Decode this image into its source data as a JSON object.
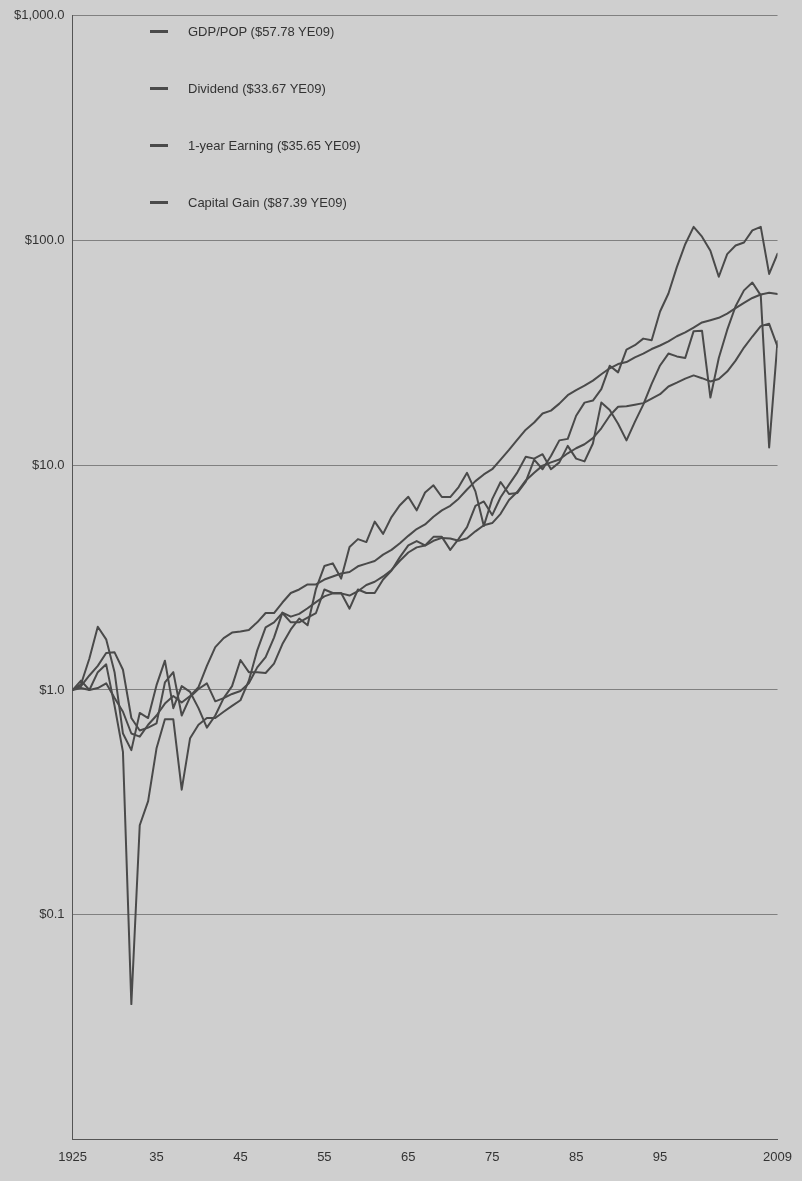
{
  "chart_data": {
    "type": "line",
    "log": "y",
    "grid": "y",
    "legend": "top left",
    "marker": "none",
    "line_style": "solid",
    "x": [
      1925,
      1926,
      1927,
      1928,
      1929,
      1930,
      1931,
      1932,
      1933,
      1934,
      1935,
      1936,
      1937,
      1938,
      1939,
      1940,
      1941,
      1942,
      1943,
      1944,
      1945,
      1946,
      1947,
      1948,
      1949,
      1950,
      1951,
      1952,
      1953,
      1954,
      1955,
      1956,
      1957,
      1958,
      1959,
      1960,
      1961,
      1962,
      1963,
      1964,
      1965,
      1966,
      1967,
      1968,
      1969,
      1970,
      1971,
      1972,
      1973,
      1974,
      1975,
      1976,
      1977,
      1978,
      1979,
      1980,
      1981,
      1982,
      1983,
      1984,
      1985,
      1986,
      1987,
      1988,
      1989,
      1990,
      1991,
      1992,
      1993,
      1994,
      1995,
      1996,
      1997,
      1998,
      1999,
      2000,
      2001,
      2002,
      2003,
      2004,
      2005,
      2006,
      2007,
      2008,
      2009
    ],
    "xlim": [
      1925,
      2009
    ],
    "xticks": [
      {
        "value": 1925,
        "label": "1925"
      },
      {
        "value": 1935,
        "label": "35"
      },
      {
        "value": 1945,
        "label": "45"
      },
      {
        "value": 1955,
        "label": "55"
      },
      {
        "value": 1965,
        "label": "65"
      },
      {
        "value": 1975,
        "label": "75"
      },
      {
        "value": 1985,
        "label": "85"
      },
      {
        "value": 1995,
        "label": "95"
      },
      {
        "value": 2009,
        "label": "2009"
      }
    ],
    "ylim": [
      0.01,
      1000
    ],
    "yticks": [
      {
        "value": 0.1,
        "label": "$0.1"
      },
      {
        "value": 1,
        "label": "$1.0"
      },
      {
        "value": 10,
        "label": "$10.0"
      },
      {
        "value": 100,
        "label": "$100.0"
      },
      {
        "value": 1000,
        "label": "$1,000.0"
      }
    ],
    "series": [
      {
        "name": "GDP/POP ($57.78 YE09)",
        "color": "#4a4a4a",
        "values": [
          1.0,
          1.02,
          1.0,
          1.02,
          1.07,
          0.92,
          0.8,
          0.64,
          0.62,
          0.7,
          0.77,
          0.87,
          0.94,
          0.88,
          0.94,
          1.03,
          1.28,
          1.55,
          1.7,
          1.8,
          1.82,
          1.85,
          2.0,
          2.2,
          2.2,
          2.45,
          2.7,
          2.8,
          2.95,
          2.95,
          3.1,
          3.2,
          3.3,
          3.35,
          3.55,
          3.65,
          3.75,
          4.0,
          4.2,
          4.5,
          4.85,
          5.2,
          5.45,
          5.9,
          6.3,
          6.6,
          7.1,
          7.8,
          8.5,
          9.1,
          9.6,
          10.6,
          11.7,
          13.0,
          14.4,
          15.5,
          17.0,
          17.5,
          18.8,
          20.5,
          21.6,
          22.6,
          23.8,
          25.4,
          27.0,
          28.2,
          28.8,
          30.2,
          31.4,
          32.9,
          34.1,
          35.6,
          37.5,
          39.0,
          41.0,
          43.2,
          44.2,
          45.3,
          47.3,
          50.0,
          52.8,
          55.5,
          57.5,
          58.5,
          57.78
        ]
      },
      {
        "name": "Dividend ($33.67 YE09)",
        "color": "#4a4a4a",
        "values": [
          1.0,
          1.04,
          1.16,
          1.28,
          1.46,
          1.47,
          1.23,
          0.75,
          0.66,
          0.68,
          0.71,
          1.08,
          1.2,
          0.77,
          0.93,
          1.01,
          1.07,
          0.89,
          0.92,
          0.96,
          0.99,
          1.07,
          1.26,
          1.4,
          1.71,
          2.21,
          2.12,
          2.18,
          2.31,
          2.46,
          2.61,
          2.69,
          2.69,
          2.63,
          2.75,
          2.93,
          3.03,
          3.2,
          3.42,
          3.76,
          4.09,
          4.31,
          4.39,
          4.61,
          4.75,
          4.72,
          4.61,
          4.73,
          5.08,
          5.41,
          5.53,
          6.08,
          7.01,
          7.62,
          8.56,
          9.25,
          9.96,
          10.3,
          10.6,
          11.3,
          11.9,
          12.4,
          13.2,
          14.6,
          16.6,
          18.2,
          18.3,
          18.6,
          18.9,
          19.8,
          20.7,
          22.4,
          23.3,
          24.3,
          25.1,
          24.4,
          23.6,
          24.2,
          26.1,
          29.2,
          33.4,
          37.4,
          41.6,
          42.6,
          33.67
        ]
      },
      {
        "name": "1-year Earning ($35.65 YE09)",
        "color": "#4a4a4a",
        "values": [
          1.0,
          1.1,
          1.0,
          1.2,
          1.3,
          0.85,
          0.53,
          0.04,
          0.25,
          0.32,
          0.55,
          0.74,
          0.74,
          0.36,
          0.61,
          0.7,
          0.75,
          0.75,
          0.8,
          0.85,
          0.9,
          1.1,
          1.5,
          1.9,
          2.0,
          2.2,
          2.0,
          2.0,
          2.1,
          2.2,
          2.8,
          2.7,
          2.7,
          2.3,
          2.8,
          2.7,
          2.7,
          3.1,
          3.4,
          3.9,
          4.4,
          4.6,
          4.4,
          4.8,
          4.8,
          4.2,
          4.7,
          5.3,
          6.6,
          6.9,
          6.0,
          7.2,
          8.2,
          9.3,
          10.9,
          10.7,
          11.2,
          9.6,
          10.3,
          12.2,
          10.7,
          10.4,
          12.5,
          19,
          17.6,
          15.3,
          12.9,
          15.6,
          18.6,
          23,
          27.8,
          31.4,
          30.5,
          30,
          39.5,
          39.7,
          20,
          30,
          40,
          51,
          60,
          65,
          57,
          12,
          35.65
        ]
      },
      {
        "name": "Capital Gain ($87.39 YE09)",
        "color": "#4a4a4a",
        "values": [
          1.0,
          1.06,
          1.38,
          1.91,
          1.68,
          1.2,
          0.64,
          0.54,
          0.79,
          0.75,
          1.05,
          1.35,
          0.83,
          1.04,
          0.98,
          0.83,
          0.68,
          0.77,
          0.92,
          1.04,
          1.36,
          1.2,
          1.2,
          1.19,
          1.31,
          1.6,
          1.86,
          2.08,
          1.94,
          2.82,
          3.56,
          3.66,
          3.13,
          4.33,
          4.69,
          4.55,
          5.61,
          4.95,
          5.88,
          6.64,
          7.24,
          6.3,
          7.56,
          8.14,
          7.22,
          7.22,
          8.0,
          9.25,
          7.65,
          5.37,
          7.07,
          8.42,
          7.45,
          7.53,
          8.46,
          10.6,
          9.6,
          11.0,
          12.9,
          13.1,
          16.6,
          19.0,
          19.4,
          21.8,
          27.7,
          25.9,
          32.7,
          34.2,
          36.6,
          36.0,
          48.3,
          58.1,
          76.1,
          96.3,
          115,
          104,
          90,
          69,
          87,
          95,
          98,
          111,
          115,
          71,
          87.39
        ]
      }
    ]
  }
}
